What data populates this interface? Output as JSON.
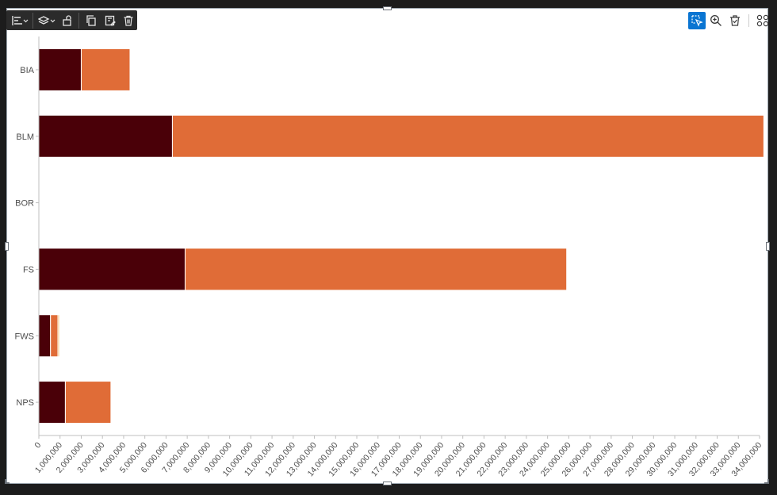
{
  "edit_toolbar": {
    "items": [
      {
        "name": "align-icon"
      },
      {
        "name": "layers-icon"
      },
      {
        "name": "unlock-icon"
      },
      {
        "name": "duplicate-icon"
      },
      {
        "name": "save-edit-icon"
      },
      {
        "name": "delete-icon"
      }
    ]
  },
  "view_toolbar": {
    "items": [
      {
        "name": "select-icon",
        "active": true
      },
      {
        "name": "zoom-in-icon"
      },
      {
        "name": "clear-selection-icon"
      },
      {
        "name": "grid-view-icon"
      }
    ]
  },
  "colors": {
    "series": [
      "#4a0008",
      "#e06c37",
      "#f4b860",
      "#f8de8a"
    ],
    "axis": "#bfbfbf",
    "tick_text": "#4d4d4d"
  },
  "chart_data": {
    "type": "bar",
    "orientation": "horizontal",
    "stacked": true,
    "title": "",
    "xlabel": "",
    "ylabel": "",
    "categories": [
      "BIA",
      "BLM",
      "BOR",
      "FS",
      "FWS",
      "NPS"
    ],
    "series": [
      {
        "values": [
          2000000,
          6300000,
          20000,
          6900000,
          550000,
          1250000
        ]
      },
      {
        "values": [
          2300000,
          27900000,
          0,
          18000000,
          350000,
          2150000
        ]
      },
      {
        "values": [
          0,
          0,
          0,
          0,
          70000,
          0
        ]
      },
      {
        "values": [
          0,
          0,
          0,
          0,
          30000,
          0
        ]
      }
    ],
    "xlim": [
      0,
      34000000
    ],
    "x_ticks": [
      {
        "value": 0,
        "label": "0"
      },
      {
        "value": 1000000,
        "label": "1,000,000"
      },
      {
        "value": 2000000,
        "label": "2,000,000"
      },
      {
        "value": 3000000,
        "label": "3,000,000"
      },
      {
        "value": 4000000,
        "label": "4,000,000"
      },
      {
        "value": 5000000,
        "label": "5,000,000"
      },
      {
        "value": 6000000,
        "label": "6,000,000"
      },
      {
        "value": 7000000,
        "label": "7,000,000"
      },
      {
        "value": 8000000,
        "label": "8,000,000"
      },
      {
        "value": 9000000,
        "label": "9,000,000"
      },
      {
        "value": 10000000,
        "label": "10,000,000"
      },
      {
        "value": 11000000,
        "label": "11,000,000"
      },
      {
        "value": 12000000,
        "label": "12,000,000"
      },
      {
        "value": 13000000,
        "label": "13,000,000"
      },
      {
        "value": 14000000,
        "label": "14,000,000"
      },
      {
        "value": 15000000,
        "label": "15,000,000"
      },
      {
        "value": 16000000,
        "label": "16,000,000"
      },
      {
        "value": 17000000,
        "label": "17,000,000"
      },
      {
        "value": 18000000,
        "label": "18,000,000"
      },
      {
        "value": 19000000,
        "label": "19,000,000"
      },
      {
        "value": 20000000,
        "label": "20,000,000"
      },
      {
        "value": 21000000,
        "label": "21,000,000"
      },
      {
        "value": 22000000,
        "label": "22,000,000"
      },
      {
        "value": 23000000,
        "label": "23,000,000"
      },
      {
        "value": 24000000,
        "label": "24,000,000"
      },
      {
        "value": 25000000,
        "label": "25,000,000"
      },
      {
        "value": 26000000,
        "label": "26,000,000"
      },
      {
        "value": 27000000,
        "label": "27,000,000"
      },
      {
        "value": 28000000,
        "label": "28,000,000"
      },
      {
        "value": 29000000,
        "label": "29,000,000"
      },
      {
        "value": 30000000,
        "label": "30,000,000"
      },
      {
        "value": 31000000,
        "label": "31,000,000"
      },
      {
        "value": 32000000,
        "label": "32,000,000"
      },
      {
        "value": 33000000,
        "label": "33,000,000"
      },
      {
        "value": 34000000,
        "label": "34,000,000"
      }
    ],
    "grid": false,
    "legend": "none"
  }
}
